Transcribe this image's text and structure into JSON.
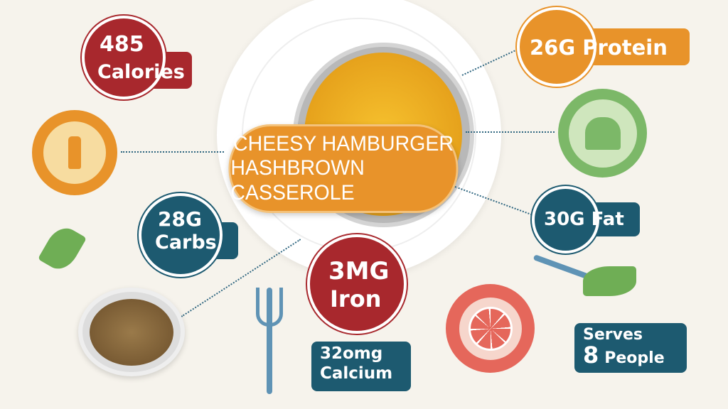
{
  "title": {
    "line1": "CHEESY HAMBURGER",
    "line2": "HASHBROWN CASSEROLE"
  },
  "calories": {
    "value": "485",
    "label": "Calories"
  },
  "protein": {
    "text": "26G Protein"
  },
  "carbs": {
    "value": "28G",
    "label": "Carbs"
  },
  "fat": {
    "text": "30G Fat"
  },
  "iron": {
    "value": "3MG",
    "label": "Iron"
  },
  "calcium": {
    "value": "32omg",
    "label": "Calcium"
  },
  "serves": {
    "line1": "Serves",
    "number": "8",
    "label": "People"
  },
  "colors": {
    "red": "#a8282d",
    "orange": "#e8932a",
    "teal": "#1d5a70",
    "green": "#7cb868",
    "coral": "#e5675b",
    "background": "#f6f3ec"
  },
  "icons": [
    "bottle-icon",
    "chef-hat-icon",
    "grapefruit-icon",
    "fork-icon",
    "herb-leaf-icon",
    "spoon-icon",
    "bowl-icon",
    "casserole-dish"
  ]
}
